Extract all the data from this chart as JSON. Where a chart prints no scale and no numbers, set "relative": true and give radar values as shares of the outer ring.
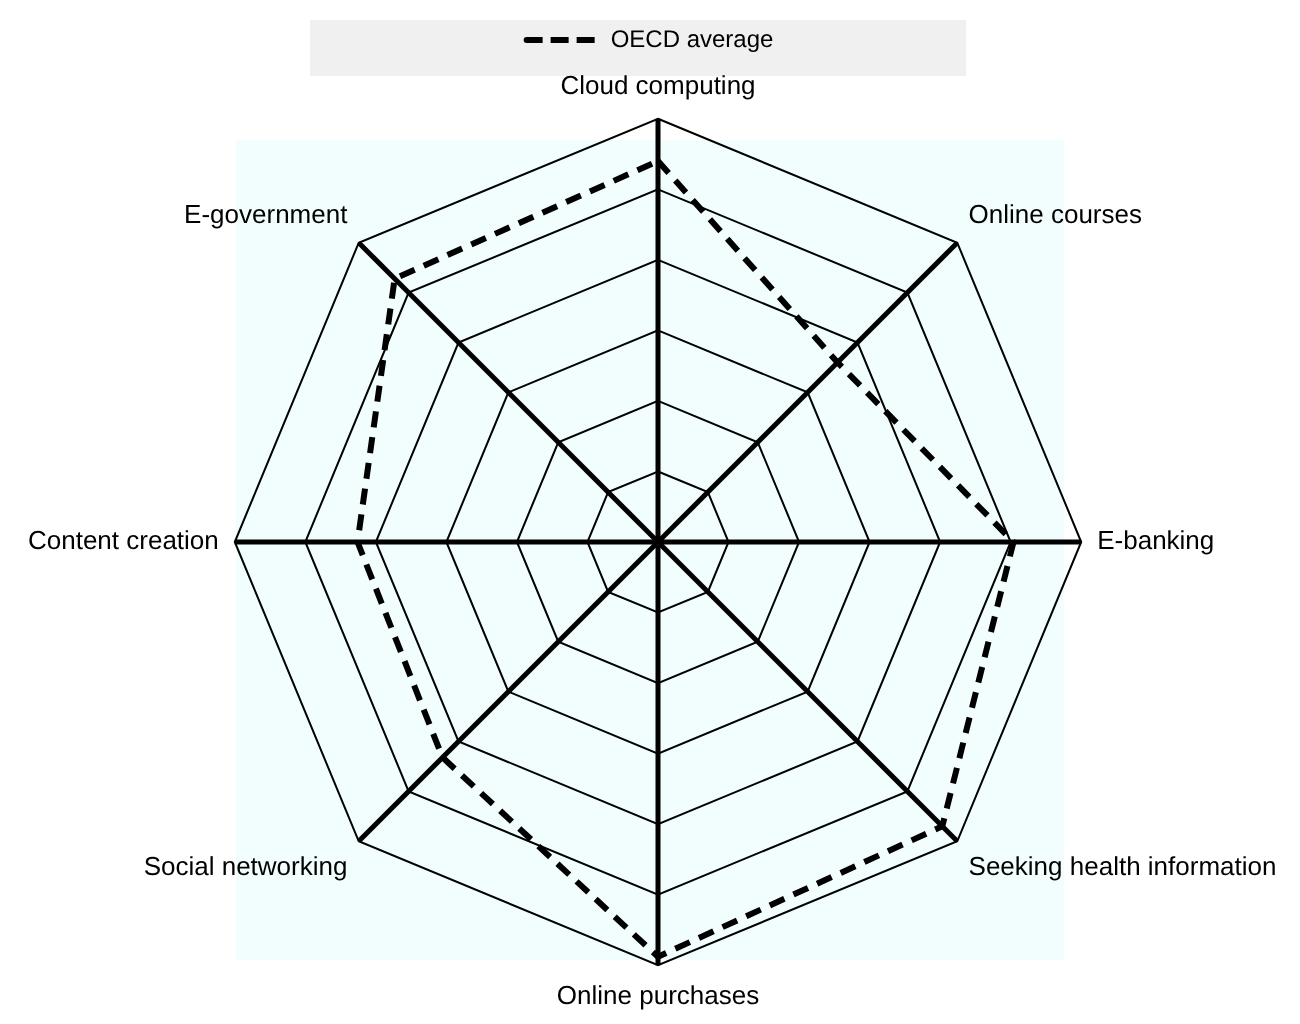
{
  "chart_data": {
    "type": "radar",
    "relative": true,
    "categories": [
      "Cloud computing",
      "Online courses",
      "E-banking",
      "Seeking health information",
      "Online purchases",
      "Social networking",
      "Content creation",
      "E-government"
    ],
    "series": [
      {
        "name": "OECD average",
        "color": "#000000",
        "line_style": "dashed",
        "values": [
          0.9,
          0.6,
          0.84,
          0.95,
          0.98,
          0.72,
          0.71,
          0.88
        ]
      }
    ],
    "legend": "top",
    "marker": "none",
    "grid": true
  }
}
